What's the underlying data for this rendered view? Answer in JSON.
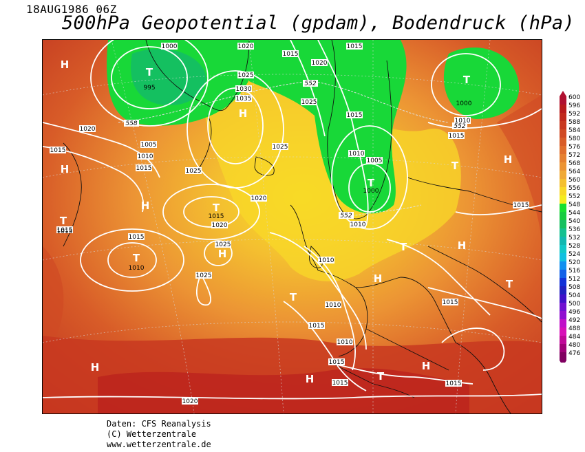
{
  "header": {
    "date": "18AUG1986 06Z",
    "title": "500hPa Geopotential (gpdam), Bodendruck (hPa)"
  },
  "credits": {
    "line1": "Daten: CFS Reanalysis",
    "line2": "(C) Wetterzentrale",
    "line3": "www.wetterzentrale.de"
  },
  "legend": {
    "levels": [
      "600",
      "596",
      "592",
      "588",
      "584",
      "580",
      "576",
      "572",
      "568",
      "564",
      "560",
      "556",
      "552",
      "548",
      "544",
      "540",
      "536",
      "532",
      "528",
      "524",
      "520",
      "516",
      "512",
      "508",
      "504",
      "500",
      "496",
      "492",
      "488",
      "484",
      "480",
      "476"
    ],
    "colors": [
      "#b01030",
      "#b81a1c",
      "#c0281c",
      "#c83820",
      "#d04a24",
      "#d85c28",
      "#e06e2c",
      "#e68030",
      "#ec9434",
      "#f0aa36",
      "#f4c030",
      "#f8d828",
      "#f4ec20",
      "#18e030",
      "#16cc40",
      "#14c060",
      "#12c090",
      "#10b8b0",
      "#10c8c8",
      "#10c0e0",
      "#1090f0",
      "#1060e8",
      "#1030d8",
      "#2020c0",
      "#4010c8",
      "#7010d0",
      "#9010d0",
      "#c010c8",
      "#d810b8",
      "#c00898",
      "#a00078",
      "#800060"
    ]
  },
  "map": {
    "centers": [
      {
        "letter": "T",
        "value": "995"
      },
      {
        "letter": "H",
        "value": ""
      },
      {
        "letter": "H",
        "value": ""
      },
      {
        "letter": "T",
        "value": "1000"
      },
      {
        "letter": "T",
        "value": "1000"
      },
      {
        "letter": "H",
        "value": ""
      },
      {
        "letter": "H",
        "value": ""
      },
      {
        "letter": "T",
        "value": "1015"
      },
      {
        "letter": "T",
        "value": "1015"
      },
      {
        "letter": "H",
        "value": ""
      },
      {
        "letter": "T",
        "value": "1010"
      },
      {
        "letter": "H",
        "value": "1025"
      },
      {
        "letter": "T",
        "value": ""
      },
      {
        "letter": "H",
        "value": ""
      },
      {
        "letter": "T",
        "value": ""
      },
      {
        "letter": "H",
        "value": ""
      },
      {
        "letter": "H",
        "value": ""
      },
      {
        "letter": "T",
        "value": ""
      },
      {
        "letter": "T",
        "value": ""
      },
      {
        "letter": "H",
        "value": ""
      },
      {
        "letter": "H",
        "value": ""
      },
      {
        "letter": "T",
        "value": ""
      },
      {
        "letter": "H",
        "value": ""
      },
      {
        "letter": "H",
        "value": ""
      },
      {
        "letter": "T",
        "value": ""
      }
    ],
    "isobar_labels": [
      "1000",
      "1020",
      "1015",
      "1015",
      "1020",
      "1025",
      "1030",
      "1035",
      "1020",
      "1005",
      "1010",
      "1015",
      "1025",
      "1015",
      "1025",
      "1020",
      "1025",
      "1015",
      "1010",
      "1005",
      "1010",
      "1015",
      "1020",
      "1025",
      "1025",
      "1015",
      "1010",
      "1010",
      "1015",
      "1010",
      "1015",
      "1015",
      "1015",
      "1020",
      "1015",
      "1010",
      "1015",
      "1015"
    ],
    "geopotential_labels": [
      "558",
      "552",
      "552",
      "552"
    ]
  }
}
